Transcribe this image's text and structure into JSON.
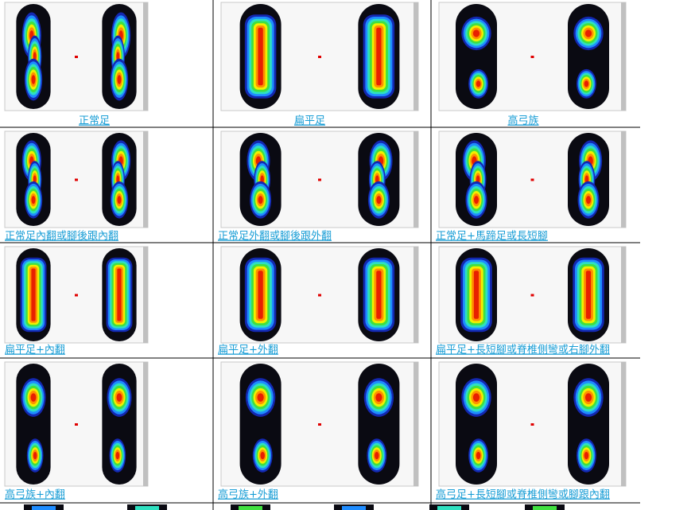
{
  "rows": [
    [
      "正常足",
      "扁平足",
      "高弓族"
    ],
    [
      "正常足內翻或腳後跟內翻",
      "正常足外翻或腳後跟外翻",
      "正常足+馬蹄足或長短腳"
    ],
    [
      "扁平足+內翻",
      "扁平足+外翻",
      "扁平足+長短腳或脊椎側彎或右腳外翻"
    ],
    [
      "高弓族+內翻",
      "高弓族+外翻",
      "高弓足+長短腳或脊椎側彎或腳跟內翻"
    ]
  ]
}
